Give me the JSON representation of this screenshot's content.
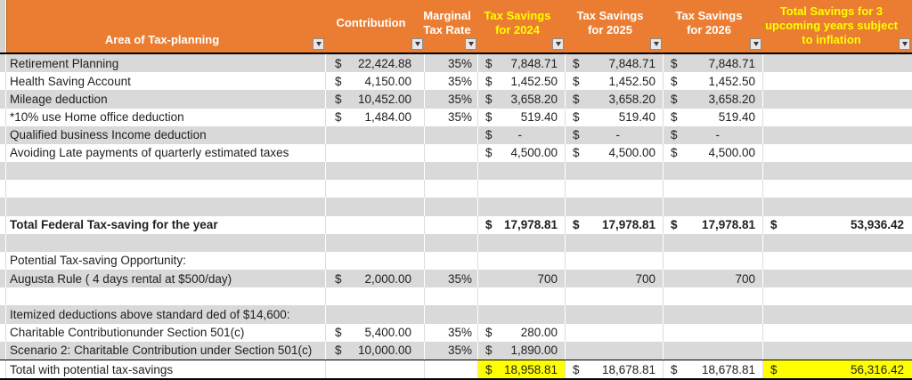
{
  "app": {
    "kind": "spreadsheet-table"
  },
  "colors": {
    "header_orange": "#EA7D31",
    "header_text_white": "#FFFFFF",
    "header_text_yellow": "#FFFF00",
    "band_gray": "#D9D9D9",
    "band_white": "#FFFFFF",
    "highlight_yellow": "#FFFF00",
    "body_text": "#1F1F1F",
    "border_black": "#000000"
  },
  "table": {
    "columns": [
      {
        "id": "area",
        "label": "Area of Tax-planning",
        "text_color": "white",
        "filter": true
      },
      {
        "id": "contribution",
        "label": "Contribution",
        "text_color": "white",
        "filter": true
      },
      {
        "id": "rate",
        "label": "Marginal Tax Rate",
        "text_color": "white",
        "filter": true
      },
      {
        "id": "y2024",
        "label": "Tax Savings for 2024",
        "text_color": "yellow",
        "filter": true
      },
      {
        "id": "y2025",
        "label": "Tax Savings for 2025",
        "text_color": "white",
        "filter": true
      },
      {
        "id": "y2026",
        "label": "Tax Savings for 2026",
        "text_color": "white",
        "filter": true
      },
      {
        "id": "total",
        "label": "Total Savings for 3 upcoming years subject to inflation",
        "text_color": "yellow",
        "filter": true
      }
    ],
    "rows": [
      {
        "band": "gray",
        "area": "Retirement Planning",
        "contribution": {
          "dollar": true,
          "value": "22,424.88"
        },
        "rate": "35%",
        "y2024": {
          "dollar": true,
          "value": "7,848.71"
        },
        "y2025": {
          "dollar": true,
          "value": "7,848.71"
        },
        "y2026": {
          "dollar": true,
          "value": "7,848.71"
        },
        "total": null
      },
      {
        "band": "white",
        "area": "Health Saving Account",
        "contribution": {
          "dollar": true,
          "value": "4,150.00"
        },
        "rate": "35%",
        "y2024": {
          "dollar": true,
          "value": "1,452.50"
        },
        "y2025": {
          "dollar": true,
          "value": "1,452.50"
        },
        "y2026": {
          "dollar": true,
          "value": "1,452.50"
        },
        "total": null
      },
      {
        "band": "gray",
        "area": "Mileage deduction",
        "contribution": {
          "dollar": true,
          "value": "10,452.00"
        },
        "rate": "35%",
        "y2024": {
          "dollar": true,
          "value": "3,658.20"
        },
        "y2025": {
          "dollar": true,
          "value": "3,658.20"
        },
        "y2026": {
          "dollar": true,
          "value": "3,658.20"
        },
        "total": null
      },
      {
        "band": "white",
        "area": "*10% use Home office deduction",
        "contribution": {
          "dollar": true,
          "value": "1,484.00"
        },
        "rate": "35%",
        "y2024": {
          "dollar": true,
          "value": "519.40"
        },
        "y2025": {
          "dollar": true,
          "value": "519.40"
        },
        "y2026": {
          "dollar": true,
          "value": "519.40"
        },
        "total": null
      },
      {
        "band": "gray",
        "area": "Qualified business Income deduction",
        "contribution": null,
        "rate": "",
        "y2024": {
          "dollar": true,
          "value": "-"
        },
        "y2025": {
          "dollar": true,
          "value": "-"
        },
        "y2026": {
          "dollar": true,
          "value": "-"
        },
        "total": null
      },
      {
        "band": "white",
        "area": "Avoiding Late payments of quarterly estimated taxes",
        "contribution": null,
        "rate": "",
        "y2024": {
          "dollar": true,
          "value": "4,500.00"
        },
        "y2025": {
          "dollar": true,
          "value": "4,500.00"
        },
        "y2026": {
          "dollar": true,
          "value": "4,500.00"
        },
        "total": null
      },
      {
        "band": "gray",
        "area": "",
        "contribution": null,
        "rate": "",
        "y2024": null,
        "y2025": null,
        "y2026": null,
        "total": null
      },
      {
        "band": "white",
        "area": "",
        "contribution": null,
        "rate": "",
        "y2024": null,
        "y2025": null,
        "y2026": null,
        "total": null
      },
      {
        "band": "gray",
        "area": "",
        "contribution": null,
        "rate": "",
        "y2024": null,
        "y2025": null,
        "y2026": null,
        "total": null
      },
      {
        "band": "white",
        "bold": true,
        "area": "Total Federal Tax-saving for the year",
        "contribution": null,
        "rate": "",
        "y2024": {
          "dollar": true,
          "value": "17,978.81"
        },
        "y2025": {
          "dollar": true,
          "value": "17,978.81"
        },
        "y2026": {
          "dollar": true,
          "value": "17,978.81"
        },
        "total": {
          "dollar": true,
          "value": "53,936.42"
        }
      },
      {
        "band": "gray",
        "area": "",
        "contribution": null,
        "rate": "",
        "y2024": null,
        "y2025": null,
        "y2026": null,
        "total": null
      },
      {
        "band": "white",
        "area": "Potential Tax-saving Opportunity:",
        "contribution": null,
        "rate": "",
        "y2024": null,
        "y2025": null,
        "y2026": null,
        "total": null
      },
      {
        "band": "gray",
        "area": "Augusta Rule ( 4 days rental at $500/day)",
        "contribution": {
          "dollar": true,
          "value": "2,000.00"
        },
        "rate": "35%",
        "y2024": {
          "dollar": false,
          "value": "700"
        },
        "y2025": {
          "dollar": false,
          "value": "700"
        },
        "y2026": {
          "dollar": false,
          "value": "700"
        },
        "total": null
      },
      {
        "band": "white",
        "area": "",
        "contribution": null,
        "rate": "",
        "y2024": null,
        "y2025": null,
        "y2026": null,
        "total": null
      },
      {
        "band": "gray",
        "area": "Itemized deductions above standard ded of $14,600:",
        "contribution": null,
        "rate": "",
        "y2024": null,
        "y2025": null,
        "y2026": null,
        "total": null
      },
      {
        "band": "white",
        "area": "Charitable Contributionunder Section 501(c)",
        "contribution": {
          "dollar": true,
          "value": "5,400.00"
        },
        "rate": "35%",
        "y2024": {
          "dollar": true,
          "value": "280.00"
        },
        "y2025": null,
        "y2026": null,
        "total": null
      },
      {
        "band": "gray",
        "area": "Scenario 2: Charitable Contribution under Section 501(c)",
        "contribution": {
          "dollar": true,
          "value": "10,000.00"
        },
        "rate": "35%",
        "y2024": {
          "dollar": true,
          "value": "1,890.00"
        },
        "y2025": null,
        "y2026": null,
        "total": null
      },
      {
        "band": "white",
        "top_border": true,
        "area": "Total with potential tax-savings",
        "contribution": null,
        "rate": "",
        "y2024": {
          "dollar": true,
          "value": "18,958.81",
          "highlight": true
        },
        "y2025": {
          "dollar": true,
          "value": "18,678.81"
        },
        "y2026": {
          "dollar": true,
          "value": "18,678.81"
        },
        "total": {
          "dollar": true,
          "value": "56,316.42",
          "highlight": true
        }
      }
    ]
  }
}
